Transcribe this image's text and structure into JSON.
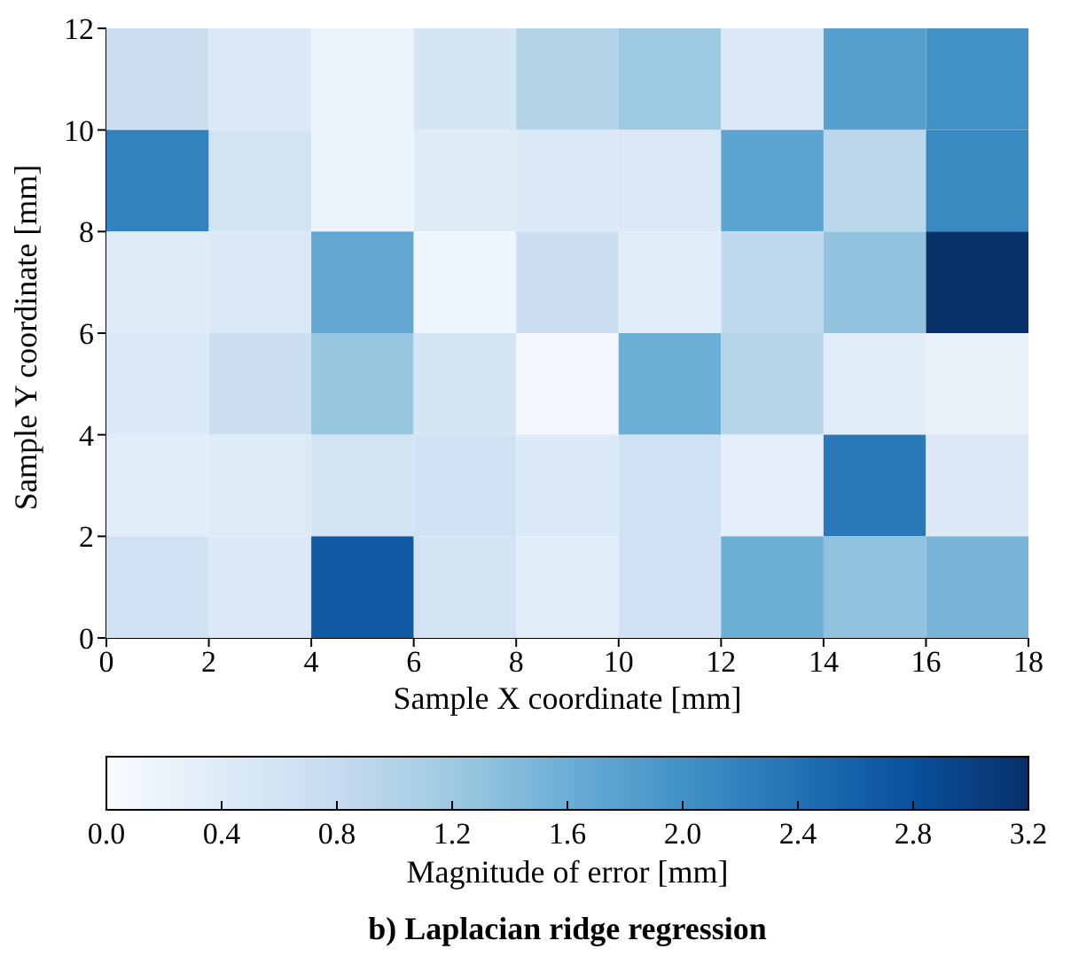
{
  "chart_data": {
    "type": "heatmap",
    "title": "b) Laplacian ridge regression",
    "xlabel": "Sample X coordinate [mm]",
    "ylabel": "Sample Y coordinate [mm]",
    "clabel": "Magnitude of error [mm]",
    "xlim": [
      0,
      18
    ],
    "xticks": [
      0,
      2,
      4,
      6,
      8,
      10,
      12,
      14,
      16,
      18
    ],
    "ylim": [
      0,
      12
    ],
    "yticks": [
      0,
      2,
      4,
      6,
      8,
      10,
      12
    ],
    "clim": [
      0,
      3.2
    ],
    "cticks": [
      {
        "value": 0,
        "label": "0.0"
      },
      {
        "value": 0.4,
        "label": "0.4"
      },
      {
        "value": 0.8,
        "label": "0.8"
      },
      {
        "value": 1.2,
        "label": "1.2"
      },
      {
        "value": 1.6,
        "label": "1.6"
      },
      {
        "value": 2,
        "label": "2.0"
      },
      {
        "value": 2.4,
        "label": "2.4"
      },
      {
        "value": 2.8,
        "label": "2.8"
      },
      {
        "value": 3.2,
        "label": "3.2"
      }
    ],
    "cells": [
      [
        0.7,
        0.45,
        0.2,
        0.55,
        1.0,
        1.2,
        0.45,
        1.8,
        2.0
      ],
      [
        2.2,
        0.6,
        0.2,
        0.4,
        0.45,
        0.45,
        1.75,
        0.9,
        2.1
      ],
      [
        0.4,
        0.45,
        1.7,
        0.15,
        0.7,
        0.35,
        0.85,
        1.3,
        3.2
      ],
      [
        0.45,
        0.7,
        1.25,
        0.55,
        0.1,
        1.6,
        0.95,
        0.35,
        0.25
      ],
      [
        0.35,
        0.4,
        0.6,
        0.65,
        0.45,
        0.65,
        0.3,
        2.3,
        0.45
      ],
      [
        0.65,
        0.45,
        2.7,
        0.6,
        0.35,
        0.65,
        1.6,
        1.3,
        1.5
      ]
    ]
  }
}
